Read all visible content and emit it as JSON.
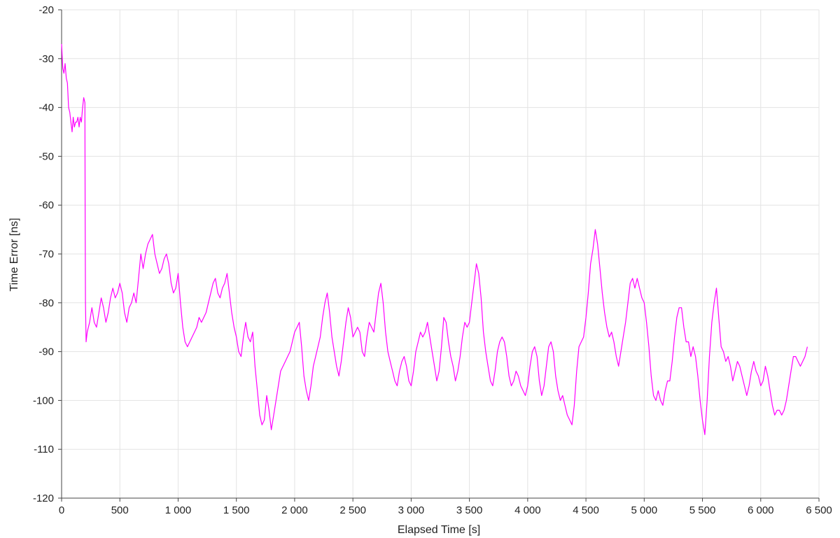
{
  "chart_data": {
    "type": "line",
    "title": "",
    "xlabel": "Elapsed Time [s]",
    "ylabel": "Time Error [ns]",
    "xlim": [
      0,
      6500
    ],
    "ylim": [
      -120,
      -20
    ],
    "grid": true,
    "line_color": "#ff00ff",
    "xtick_labels": [
      "0",
      "500",
      "1 000",
      "1 500",
      "2 000",
      "2 500",
      "3 000",
      "3 500",
      "4 000",
      "4 500",
      "5 000",
      "5 500",
      "6 000",
      "6 500"
    ],
    "ytick_labels": [
      "-20",
      "-30",
      "-40",
      "-50",
      "-60",
      "-70",
      "-80",
      "-90",
      "-100",
      "-110",
      "-120"
    ],
    "series": [
      {
        "x": [
          0,
          10,
          20,
          30,
          40,
          50,
          60,
          70,
          80,
          90,
          100,
          110,
          120,
          130,
          140,
          150,
          160,
          170,
          180,
          190,
          200,
          202,
          205,
          210,
          220,
          240,
          260,
          280,
          300,
          320,
          340,
          360,
          380,
          400,
          420,
          440,
          460,
          480,
          500,
          520,
          540,
          560,
          580,
          600,
          620,
          640,
          660,
          680,
          700,
          720,
          740,
          760,
          780,
          800,
          820,
          840,
          860,
          880,
          900,
          920,
          940,
          960,
          980,
          1000,
          1020,
          1040,
          1060,
          1080,
          1100,
          1120,
          1140,
          1160,
          1180,
          1200,
          1220,
          1240,
          1260,
          1280,
          1300,
          1320,
          1340,
          1360,
          1380,
          1400,
          1420,
          1440,
          1460,
          1480,
          1500,
          1520,
          1540,
          1560,
          1580,
          1600,
          1620,
          1640,
          1660,
          1680,
          1700,
          1720,
          1740,
          1760,
          1780,
          1800,
          1820,
          1840,
          1860,
          1880,
          1900,
          1920,
          1940,
          1960,
          1980,
          2000,
          2020,
          2040,
          2060,
          2080,
          2100,
          2120,
          2140,
          2160,
          2180,
          2200,
          2220,
          2240,
          2260,
          2280,
          2300,
          2320,
          2340,
          2360,
          2380,
          2400,
          2420,
          2440,
          2460,
          2480,
          2500,
          2520,
          2540,
          2560,
          2580,
          2600,
          2620,
          2640,
          2660,
          2680,
          2700,
          2720,
          2740,
          2760,
          2780,
          2800,
          2820,
          2840,
          2860,
          2880,
          2900,
          2920,
          2940,
          2960,
          2980,
          3000,
          3020,
          3040,
          3060,
          3080,
          3100,
          3120,
          3140,
          3160,
          3180,
          3200,
          3220,
          3240,
          3260,
          3280,
          3300,
          3320,
          3340,
          3360,
          3380,
          3400,
          3420,
          3440,
          3460,
          3480,
          3500,
          3520,
          3540,
          3560,
          3580,
          3600,
          3620,
          3640,
          3660,
          3680,
          3700,
          3720,
          3740,
          3760,
          3780,
          3800,
          3820,
          3840,
          3860,
          3880,
          3900,
          3920,
          3940,
          3960,
          3980,
          4000,
          4020,
          4040,
          4060,
          4080,
          4100,
          4120,
          4140,
          4160,
          4180,
          4200,
          4220,
          4240,
          4260,
          4280,
          4300,
          4320,
          4340,
          4360,
          4380,
          4400,
          4420,
          4440,
          4460,
          4480,
          4500,
          4520,
          4540,
          4560,
          4580,
          4600,
          4620,
          4640,
          4660,
          4680,
          4700,
          4720,
          4740,
          4760,
          4780,
          4800,
          4820,
          4840,
          4860,
          4880,
          4900,
          4920,
          4940,
          4960,
          4980,
          5000,
          5020,
          5040,
          5060,
          5080,
          5100,
          5120,
          5140,
          5160,
          5180,
          5200,
          5220,
          5240,
          5260,
          5280,
          5300,
          5320,
          5340,
          5360,
          5380,
          5400,
          5420,
          5440,
          5460,
          5480,
          5500,
          5520,
          5540,
          5560,
          5580,
          5600,
          5620,
          5640,
          5660,
          5680,
          5700,
          5720,
          5740,
          5760,
          5780,
          5800,
          5820,
          5840,
          5860,
          5880,
          5900,
          5920,
          5940,
          5960,
          5980,
          6000,
          6020,
          6040,
          6060,
          6080,
          6100,
          6120,
          6140,
          6160,
          6180,
          6200,
          6220,
          6240,
          6260,
          6280,
          6300,
          6320,
          6340,
          6360,
          6380,
          6400
        ],
        "y": [
          -27,
          -32,
          -33,
          -31,
          -34,
          -35,
          -40,
          -41,
          -43,
          -45,
          -42,
          -44,
          -43,
          -43,
          -42,
          -44,
          -42,
          -43,
          -40,
          -38,
          -39,
          -60,
          -80,
          -88,
          -86,
          -84,
          -81,
          -84,
          -85,
          -82,
          -79,
          -81,
          -84,
          -82,
          -79,
          -77,
          -79,
          -78,
          -76,
          -78,
          -82,
          -84,
          -81,
          -80,
          -78,
          -80,
          -75,
          -70,
          -73,
          -70,
          -68,
          -67,
          -66,
          -70,
          -72,
          -74,
          -73,
          -71,
          -70,
          -72,
          -76,
          -78,
          -77,
          -74,
          -80,
          -85,
          -88,
          -89,
          -88,
          -87,
          -86,
          -85,
          -83,
          -84,
          -83,
          -82,
          -80,
          -78,
          -76,
          -75,
          -78,
          -79,
          -77,
          -76,
          -74,
          -78,
          -82,
          -85,
          -87,
          -90,
          -91,
          -87,
          -84,
          -87,
          -88,
          -86,
          -93,
          -98,
          -103,
          -105,
          -104,
          -99,
          -102,
          -106,
          -103,
          -100,
          -97,
          -94,
          -93,
          -92,
          -91,
          -90,
          -88,
          -86,
          -85,
          -84,
          -89,
          -95,
          -98,
          -100,
          -97,
          -93,
          -91,
          -89,
          -87,
          -83,
          -80,
          -78,
          -82,
          -87,
          -90,
          -93,
          -95,
          -92,
          -88,
          -84,
          -81,
          -83,
          -87,
          -86,
          -85,
          -86,
          -90,
          -91,
          -87,
          -84,
          -85,
          -86,
          -82,
          -78,
          -76,
          -80,
          -86,
          -90,
          -92,
          -94,
          -96,
          -97,
          -94,
          -92,
          -91,
          -93,
          -96,
          -97,
          -94,
          -90,
          -88,
          -86,
          -87,
          -86,
          -84,
          -87,
          -90,
          -93,
          -96,
          -94,
          -89,
          -83,
          -84,
          -88,
          -91,
          -93,
          -96,
          -94,
          -91,
          -87,
          -84,
          -85,
          -84,
          -80,
          -76,
          -72,
          -74,
          -79,
          -86,
          -90,
          -93,
          -96,
          -97,
          -94,
          -90,
          -88,
          -87,
          -88,
          -91,
          -95,
          -97,
          -96,
          -94,
          -95,
          -97,
          -98,
          -99,
          -97,
          -93,
          -90,
          -89,
          -91,
          -96,
          -99,
          -97,
          -93,
          -89,
          -88,
          -90,
          -95,
          -98,
          -100,
          -99,
          -101,
          -103,
          -104,
          -105,
          -101,
          -94,
          -89,
          -88,
          -87,
          -83,
          -78,
          -72,
          -69,
          -65,
          -68,
          -73,
          -78,
          -82,
          -85,
          -87,
          -86,
          -88,
          -91,
          -93,
          -90,
          -87,
          -84,
          -80,
          -76,
          -75,
          -77,
          -75,
          -77,
          -79,
          -80,
          -84,
          -89,
          -95,
          -99,
          -100,
          -98,
          -100,
          -101,
          -98,
          -96,
          -96,
          -92,
          -87,
          -83,
          -81,
          -81,
          -85,
          -88,
          -88,
          -91,
          -89,
          -91,
          -95,
          -100,
          -104,
          -107,
          -100,
          -91,
          -84,
          -80,
          -77,
          -83,
          -89,
          -90,
          -92,
          -91,
          -93,
          -96,
          -94,
          -92,
          -93,
          -95,
          -97,
          -99,
          -97,
          -94,
          -92,
          -94,
          -95,
          -97,
          -96,
          -93,
          -95,
          -98,
          -101,
          -103,
          -102,
          -102,
          -103,
          -102,
          -100,
          -97,
          -94,
          -91,
          -91,
          -92,
          -93,
          -92,
          -91,
          -89
        ]
      }
    ]
  }
}
